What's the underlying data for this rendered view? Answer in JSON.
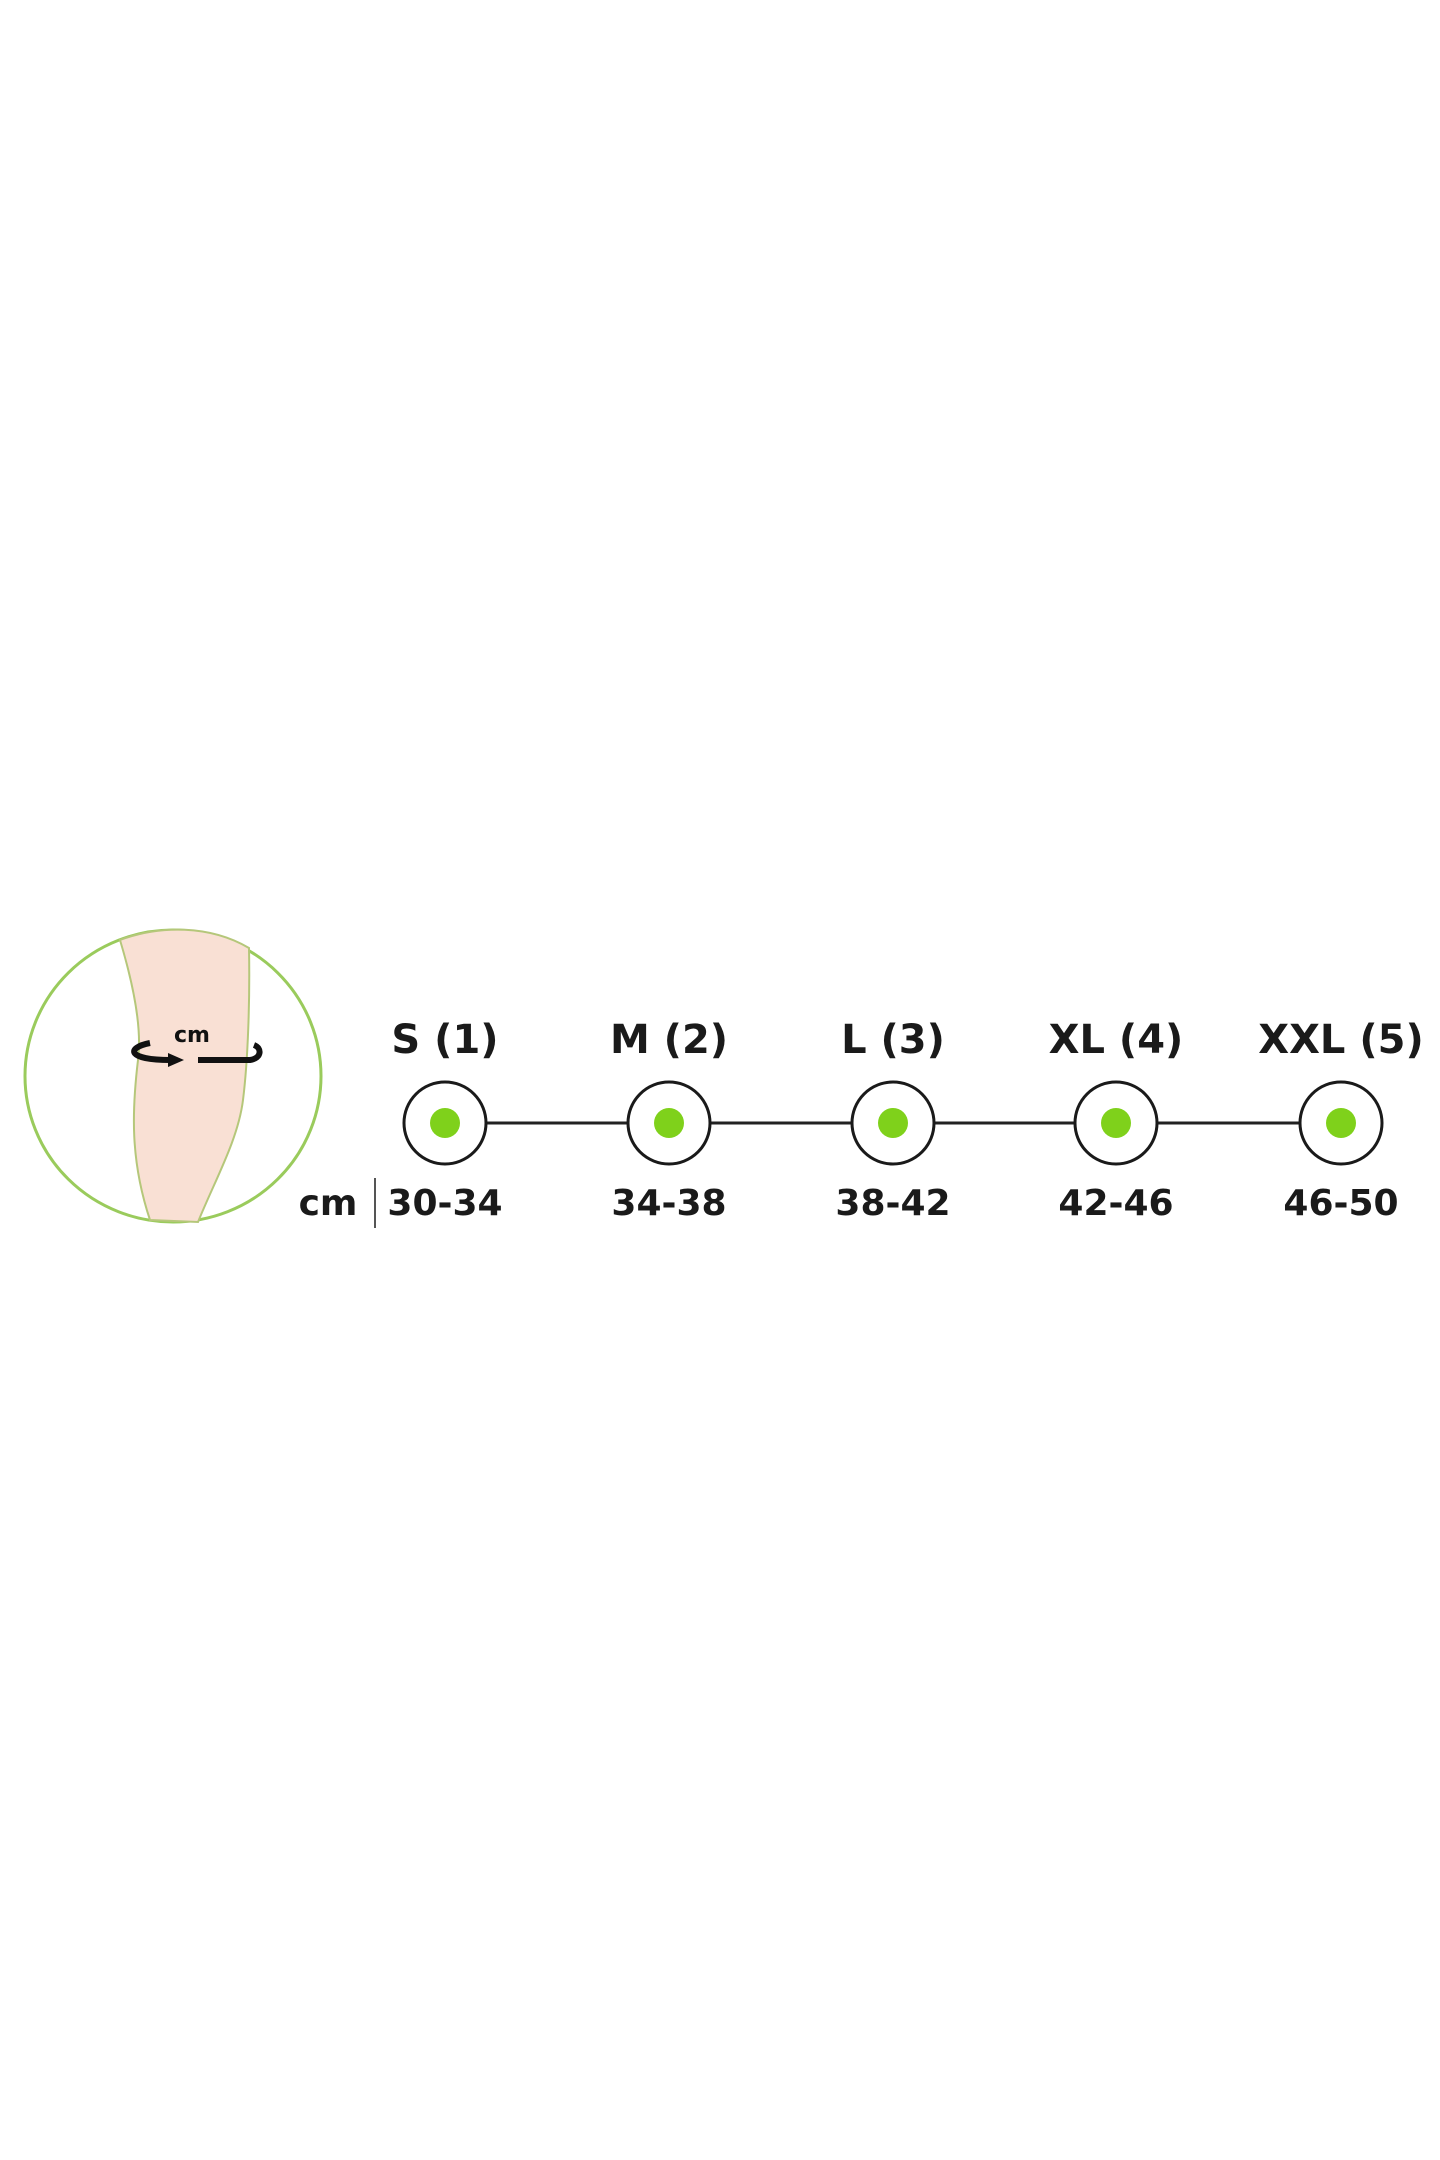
{
  "illustration": {
    "unit_label": "cm",
    "icon": "knee-circumference-icon"
  },
  "unit": "cm",
  "sizes": [
    {
      "label": "S (1)",
      "range": "30-34"
    },
    {
      "label": "M (2)",
      "range": "34-38"
    },
    {
      "label": "L (3)",
      "range": "38-42"
    },
    {
      "label": "XL (4)",
      "range": "42-46"
    },
    {
      "label": "XXL (5)",
      "range": "46-50"
    }
  ],
  "colors": {
    "accent": "#7fd11b",
    "circle_outline": "#9acb5c",
    "skin": "#f9e0d4",
    "text": "#1a1a1a"
  }
}
